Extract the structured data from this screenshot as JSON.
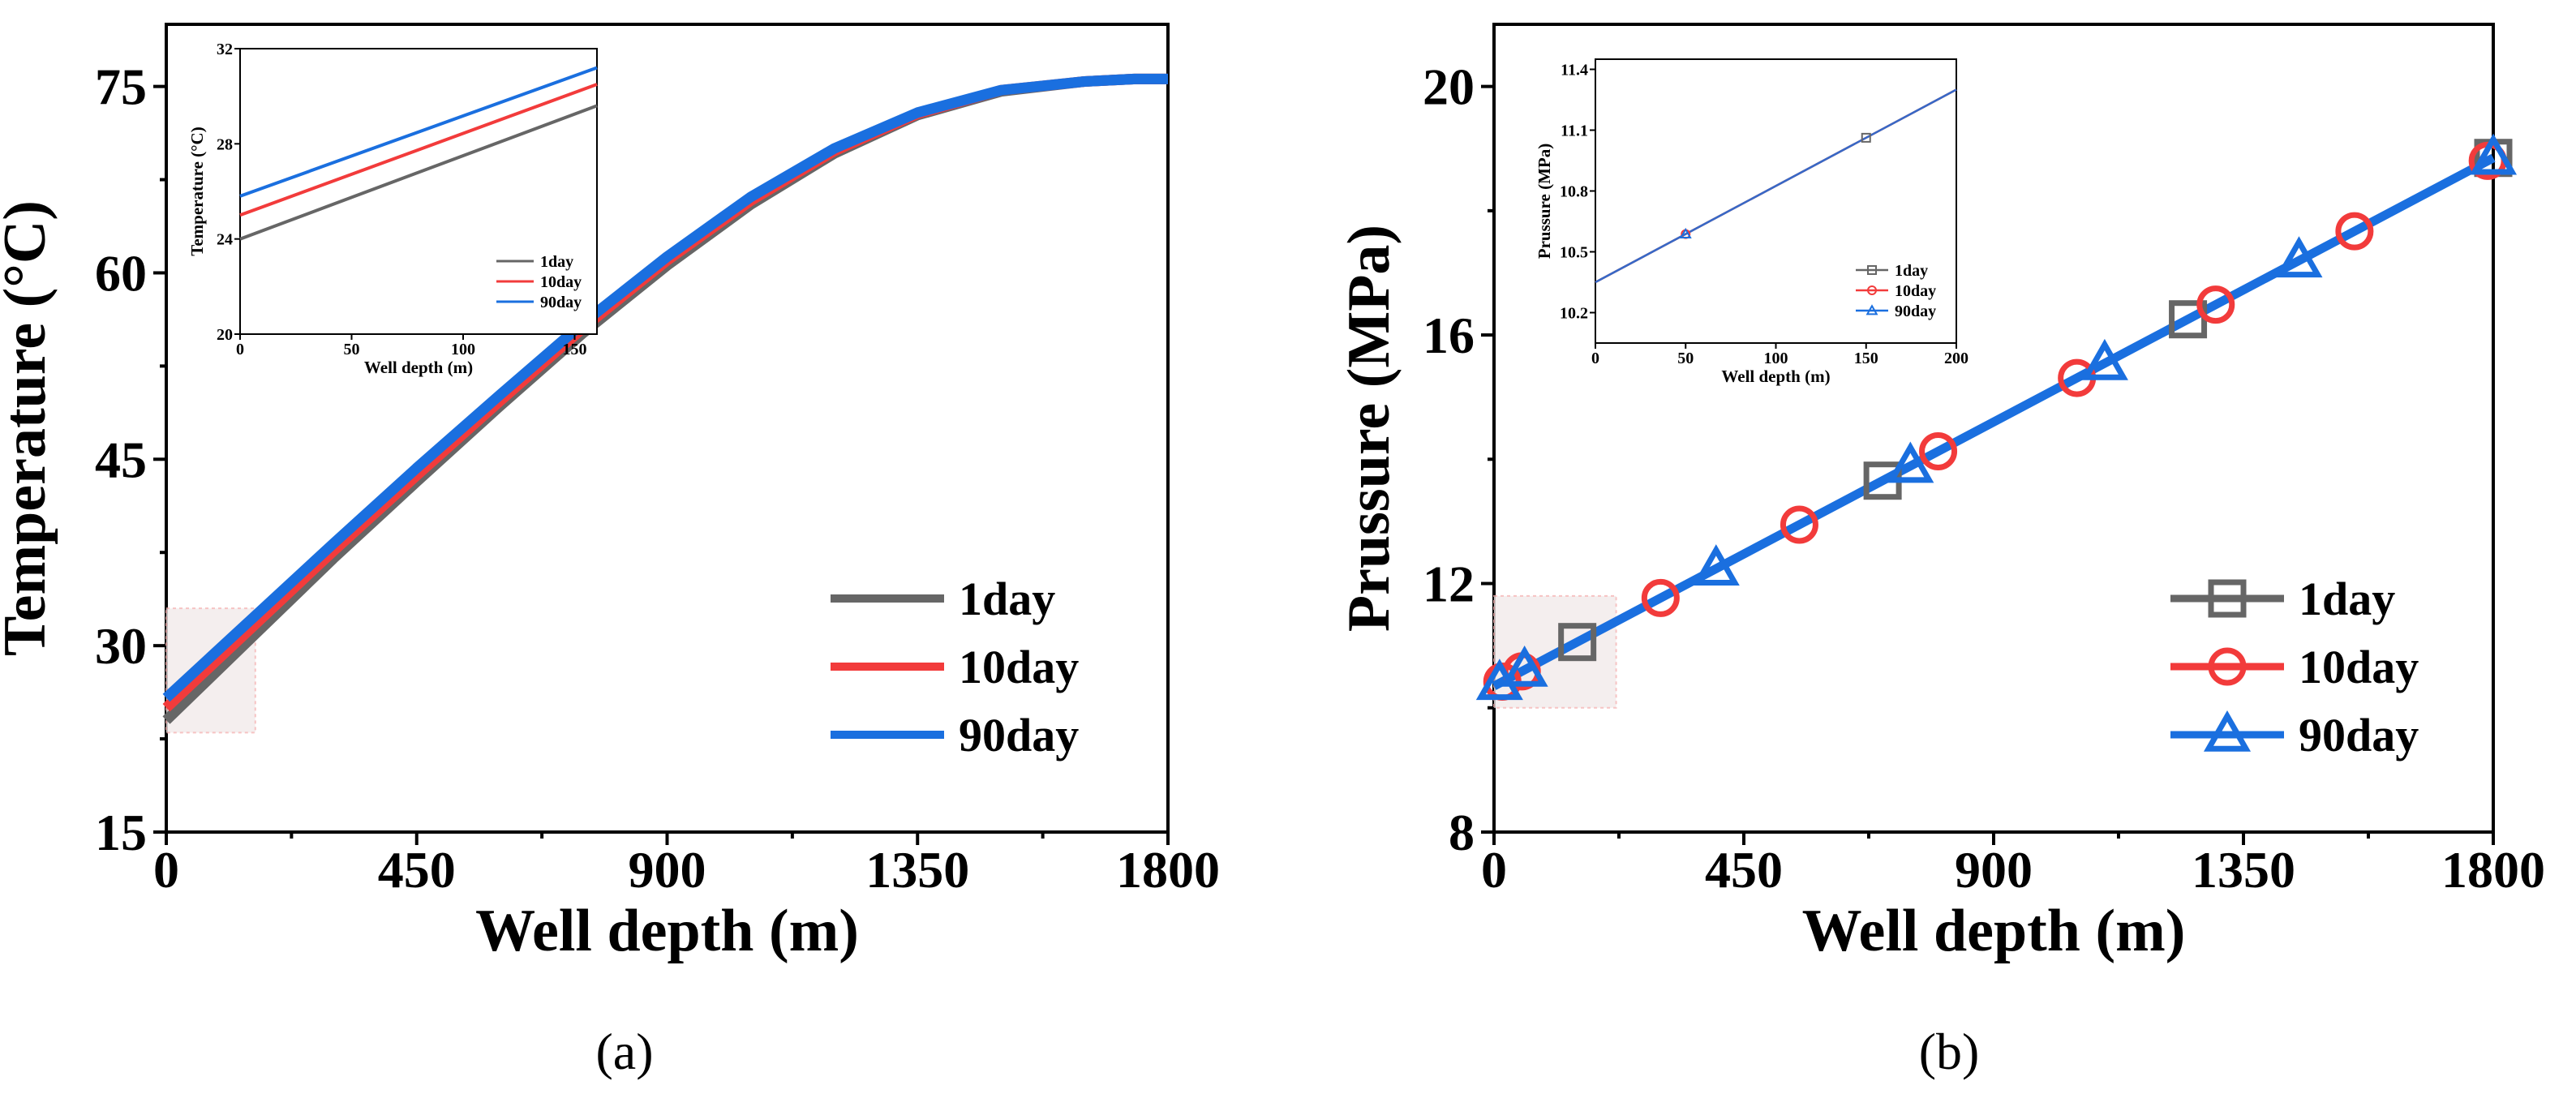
{
  "colors": {
    "1day": "#666666",
    "10day": "#f23b3b",
    "90day": "#1a6fdf"
  },
  "chart_data": [
    {
      "id": "a",
      "type": "line",
      "caption": "(a)",
      "xlabel": "Well depth (m)",
      "ylabel": "Temperature (°C)",
      "xlim": [
        0,
        1800
      ],
      "ylim": [
        15,
        80
      ],
      "xticks": [
        0,
        450,
        900,
        1350,
        1800
      ],
      "yticks": [
        15,
        30,
        45,
        60,
        75
      ],
      "legend_position": "bottom-right",
      "legend": [
        "1day",
        "10day",
        "90day"
      ],
      "series": [
        {
          "name": "1day",
          "x": [
            0,
            150,
            300,
            450,
            600,
            750,
            900,
            1050,
            1200,
            1350,
            1500,
            1650,
            1740,
            1800
          ],
          "y": [
            24,
            30.5,
            37,
            43.2,
            49.3,
            55.2,
            60.6,
            65.5,
            69.6,
            72.7,
            74.6,
            75.4,
            75.6,
            75.6
          ]
        },
        {
          "name": "10day",
          "x": [
            0,
            150,
            300,
            450,
            600,
            750,
            900,
            1050,
            1200,
            1350,
            1500,
            1650,
            1740,
            1800
          ],
          "y": [
            25,
            31.3,
            37.6,
            43.7,
            49.7,
            55.6,
            61,
            65.8,
            69.8,
            72.8,
            74.7,
            75.4,
            75.6,
            75.6
          ]
        },
        {
          "name": "90day",
          "x": [
            0,
            150,
            300,
            450,
            600,
            750,
            900,
            1050,
            1200,
            1350,
            1500,
            1650,
            1740,
            1800
          ],
          "y": [
            25.8,
            32,
            38.2,
            44.3,
            50.2,
            56,
            61.3,
            66.1,
            70,
            72.9,
            74.7,
            75.4,
            75.6,
            75.6
          ]
        }
      ],
      "inset": {
        "xlabel": "Well depth (m)",
        "ylabel": "Temperature (°C)",
        "xlim": [
          0,
          160
        ],
        "ylim": [
          20,
          32
        ],
        "xticks": [
          0,
          50,
          100,
          150
        ],
        "yticks": [
          20,
          24,
          28,
          32
        ],
        "legend_position": "bottom-right",
        "legend": [
          "1day",
          "10day",
          "90day"
        ],
        "series": [
          {
            "name": "1day",
            "x": [
              0,
              160
            ],
            "y": [
              24,
              29.6
            ]
          },
          {
            "name": "10day",
            "x": [
              0,
              160
            ],
            "y": [
              25,
              30.5
            ]
          },
          {
            "name": "90day",
            "x": [
              0,
              160
            ],
            "y": [
              25.8,
              31.2
            ]
          }
        ]
      }
    },
    {
      "id": "b",
      "type": "line",
      "caption": "(b)",
      "xlabel": "Well depth (m)",
      "ylabel": "Prussure (MPa)",
      "xlim": [
        0,
        1800
      ],
      "ylim": [
        8,
        21
      ],
      "xticks": [
        0,
        450,
        900,
        1350,
        1800
      ],
      "yticks": [
        8,
        12,
        16,
        20
      ],
      "legend_position": "bottom-right",
      "legend": [
        "1day",
        "10day",
        "90day"
      ],
      "series": [
        {
          "name": "1day",
          "x": [
            0,
            1800
          ],
          "y": [
            10.35,
            18.85
          ],
          "markers": [
            150,
            700,
            1250,
            1800
          ]
        },
        {
          "name": "10day",
          "x": [
            0,
            1800
          ],
          "y": [
            10.35,
            18.85
          ],
          "markers": [
            15,
            50,
            300,
            550,
            800,
            1050,
            1300,
            1550,
            1790
          ]
        },
        {
          "name": "90day",
          "x": [
            0,
            1800
          ],
          "y": [
            10.35,
            18.85
          ],
          "markers": [
            10,
            55,
            400,
            750,
            1100,
            1450,
            1800
          ]
        }
      ],
      "inset": {
        "xlabel": "Well depth (m)",
        "ylabel": "Prussure (MPa)",
        "xlim": [
          0,
          200
        ],
        "ylim": [
          10.05,
          11.45
        ],
        "xticks": [
          0,
          50,
          100,
          150,
          200
        ],
        "yticks": [
          10.2,
          10.5,
          10.8,
          11.1,
          11.4
        ],
        "legend_position": "bottom-right",
        "legend": [
          "1day",
          "10day",
          "90day"
        ],
        "series": [
          {
            "name": "1day",
            "x": [
              0,
              200
            ],
            "y": [
              10.35,
              11.3
            ],
            "markers": [
              150
            ]
          },
          {
            "name": "10day",
            "x": [
              0,
              200
            ],
            "y": [
              10.35,
              11.3
            ],
            "markers": [
              50
            ]
          },
          {
            "name": "90day",
            "x": [
              0,
              200
            ],
            "y": [
              10.35,
              11.3
            ],
            "markers": [
              50
            ]
          }
        ]
      }
    }
  ]
}
